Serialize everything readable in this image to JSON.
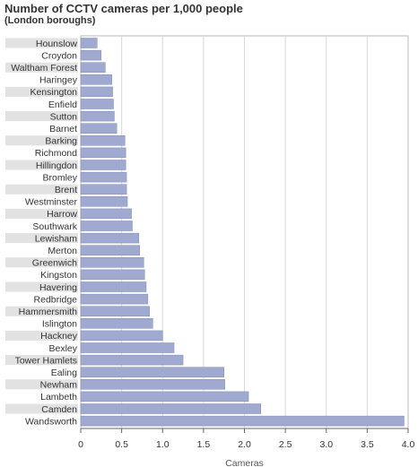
{
  "colors": {
    "bar": "#a0aad0",
    "bar_stroke": "#7e8ab8",
    "label_band": "#e2e2e2",
    "grid": "#d8d8d8",
    "frame": "#bbbbbb",
    "axis": "#666666"
  },
  "chart_data": {
    "type": "bar",
    "orientation": "horizontal",
    "title": "Number of CCTV cameras per 1,000 people",
    "subtitle": "(London boroughs)",
    "xlabel": "Cameras",
    "ylabel": "",
    "xlim": [
      0,
      4.0
    ],
    "xticks": [
      "0",
      "0.5",
      "1.0",
      "1.5",
      "2.0",
      "2.5",
      "3.0",
      "3.5",
      "4.0"
    ],
    "grid": true,
    "categories": [
      "Hounslow",
      "Croydon",
      "Waltham Forest",
      "Haringey",
      "Kensington",
      "Enfield",
      "Sutton",
      "Barnet",
      "Barking",
      "Richmond",
      "Hillingdon",
      "Bromley",
      "Brent",
      "Westminster",
      "Harrow",
      "Southwark",
      "Lewisham",
      "Merton",
      "Greenwich",
      "Kingston",
      "Havering",
      "Redbridge",
      "Hammersmith",
      "Islington",
      "Hackney",
      "Bexley",
      "Tower Hamlets",
      "Ealing",
      "Newham",
      "Lambeth",
      "Camden",
      "Wandsworth"
    ],
    "values": [
      0.2,
      0.25,
      0.3,
      0.38,
      0.39,
      0.4,
      0.41,
      0.44,
      0.54,
      0.55,
      0.55,
      0.56,
      0.56,
      0.57,
      0.62,
      0.63,
      0.71,
      0.72,
      0.77,
      0.78,
      0.8,
      0.82,
      0.84,
      0.88,
      1.0,
      1.14,
      1.25,
      1.75,
      1.76,
      2.05,
      2.2,
      3.95
    ],
    "banded_rows": [
      0,
      2,
      4,
      6,
      8,
      10,
      12,
      14,
      16,
      18,
      20,
      22,
      24,
      26,
      28,
      30
    ]
  }
}
